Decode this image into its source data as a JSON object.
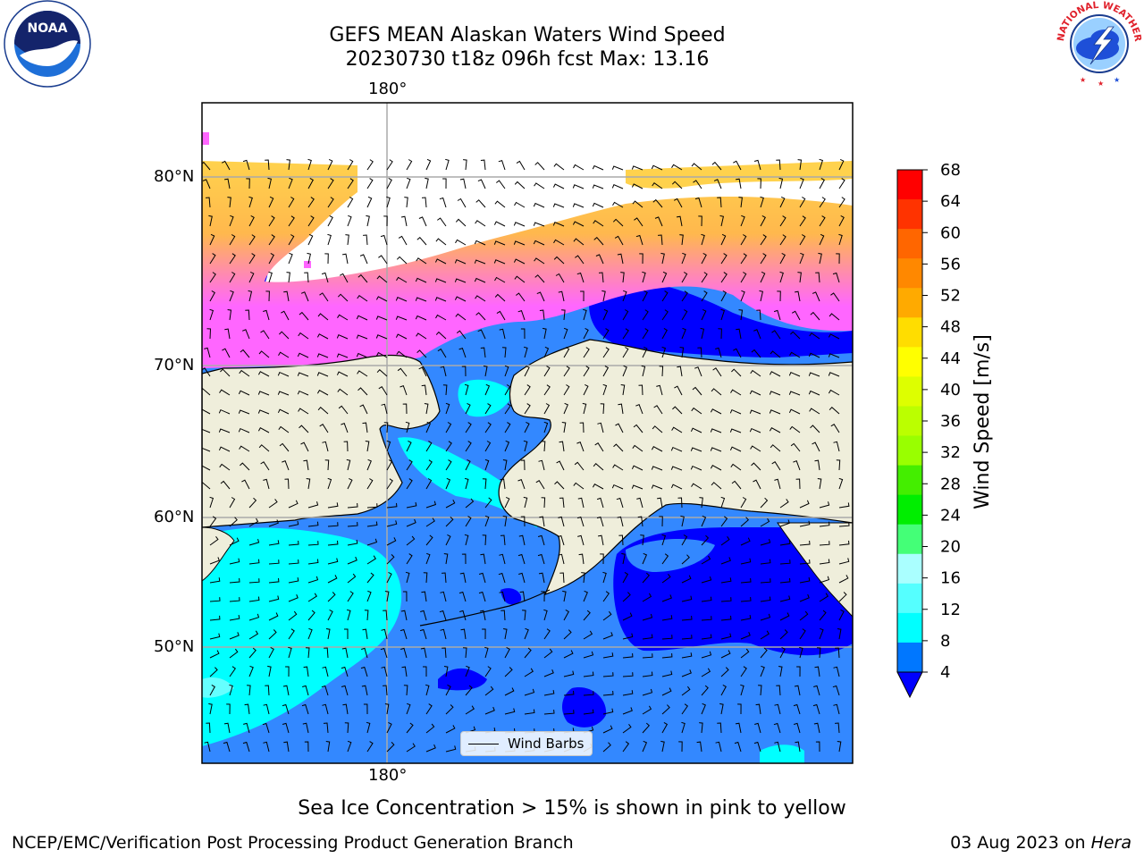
{
  "title": {
    "line1": "GEFS MEAN Alaskan Waters Wind Speed",
    "line2": "20230730 t18z 096h fcst   Max: 13.16"
  },
  "map": {
    "lon_labels": {
      "top": "180°",
      "bottom": "180°"
    },
    "lat_labels": [
      "80°N",
      "70°N",
      "60°N",
      "50°N"
    ],
    "legend_label": "Wind Barbs",
    "colors": {
      "land": "#efeedb",
      "ocean_blue": "#3388ff",
      "deep_blue": "#0000ff",
      "cyan": "#00ffff",
      "light_cyan": "#66ffff",
      "ice_pink": "#ff66ff",
      "ice_orange": "#ffb84d",
      "ice_yellow": "#ffd24d",
      "grid": "#aaaaaa"
    }
  },
  "colorbar": {
    "label": "Wind Speed [m/s]",
    "ticks": [
      "68",
      "64",
      "60",
      "56",
      "52",
      "48",
      "44",
      "40",
      "36",
      "32",
      "28",
      "24",
      "20",
      "16",
      "12",
      "8",
      "4"
    ],
    "colors": [
      "#ff0000",
      "#ff3300",
      "#ff6600",
      "#ff8800",
      "#ffaa00",
      "#ffdd00",
      "#ffff00",
      "#ddff00",
      "#bbff00",
      "#99ff00",
      "#44ee00",
      "#00ee00",
      "#44ff77",
      "#aaffff",
      "#55ffff",
      "#00ffff",
      "#0077ff"
    ],
    "extend_color": "#0000ff"
  },
  "footer": {
    "ice_note": "Sea Ice Concentration > 15% is shown in pink to yellow",
    "credit": "NCEP/EMC/Verification Post Processing Product Generation Branch",
    "date_text": "03 Aug 2023 on ",
    "date_host": "Hera"
  },
  "logos": {
    "noaa_text": "NOAA",
    "nws_text": "NATIONAL WEATHER SERVICE"
  }
}
